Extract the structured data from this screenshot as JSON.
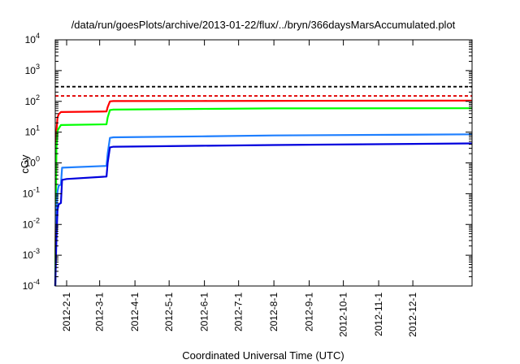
{
  "chart_data": {
    "type": "line",
    "title": "/data/run/goesPlots/archive/2013-01-22/flux/../bryn/366daysMarsAccumulated.plot",
    "xlabel": "Coordinated Universal Time (UTC)",
    "ylabel": "cGy",
    "yscale": "log",
    "ylim": [
      0.0001,
      10000
    ],
    "xlim": [
      "2012-01-22",
      "2013-01-22"
    ],
    "grid": false,
    "legend": "none",
    "x_ticks": [
      "2012-2-1",
      "2012-3-1",
      "2012-4-1",
      "2012-5-1",
      "2012-6-1",
      "2012-7-1",
      "2012-8-1",
      "2012-9-1",
      "2012-10-1",
      "2012-11-1",
      "2012-12-1"
    ],
    "x_tick_dates": [
      "2012-02-01",
      "2012-03-01",
      "2012-04-01",
      "2012-05-01",
      "2012-06-01",
      "2012-07-01",
      "2012-08-01",
      "2012-09-01",
      "2012-10-01",
      "2012-11-01",
      "2012-12-01"
    ],
    "y_ticks": [
      {
        "value": 0.0001,
        "base": "10",
        "exp": "-4"
      },
      {
        "value": 0.001,
        "base": "10",
        "exp": "-3"
      },
      {
        "value": 0.01,
        "base": "10",
        "exp": "-2"
      },
      {
        "value": 0.1,
        "base": "10",
        "exp": "-1"
      },
      {
        "value": 1,
        "base": "10",
        "exp": "0"
      },
      {
        "value": 10,
        "base": "10",
        "exp": "1"
      },
      {
        "value": 100,
        "base": "10",
        "exp": "2"
      },
      {
        "value": 1000,
        "base": "10",
        "exp": "3"
      },
      {
        "value": 10000,
        "base": "10",
        "exp": "4"
      }
    ],
    "reference_lines": [
      {
        "value": 300,
        "color": "#000000",
        "dash": true
      },
      {
        "value": 150,
        "color": "#e00000",
        "dash": true
      }
    ],
    "series": [
      {
        "color": "#ff0000",
        "points": [
          [
            "2012-01-22",
            0.0001
          ],
          [
            "2012-01-23",
            10
          ],
          [
            "2012-01-24",
            30
          ],
          [
            "2012-01-25",
            38
          ],
          [
            "2012-01-27",
            45
          ],
          [
            "2012-03-07",
            47
          ],
          [
            "2012-03-08",
            65
          ],
          [
            "2012-03-10",
            100
          ],
          [
            "2012-03-13",
            102
          ],
          [
            "2012-05-30",
            103
          ],
          [
            "2012-08-01",
            104
          ],
          [
            "2013-01-22",
            106
          ]
        ]
      },
      {
        "color": "#00ff00",
        "points": [
          [
            "2012-01-22",
            0.0001
          ],
          [
            "2012-01-23",
            3
          ],
          [
            "2012-01-24",
            11
          ],
          [
            "2012-01-25",
            13
          ],
          [
            "2012-01-27",
            17
          ],
          [
            "2012-03-07",
            18
          ],
          [
            "2012-03-08",
            30
          ],
          [
            "2012-03-10",
            52
          ],
          [
            "2012-03-13",
            54
          ],
          [
            "2012-05-30",
            57
          ],
          [
            "2012-08-01",
            59
          ],
          [
            "2013-01-22",
            60
          ]
        ]
      },
      {
        "color": "#1e7fff",
        "points": [
          [
            "2012-01-22",
            0.0001
          ],
          [
            "2012-01-23",
            0.03
          ],
          [
            "2012-01-24",
            0.12
          ],
          [
            "2012-01-25",
            0.18
          ],
          [
            "2012-01-27",
            0.2
          ],
          [
            "2012-01-28",
            0.7
          ],
          [
            "2012-03-07",
            0.8
          ],
          [
            "2012-03-08",
            2
          ],
          [
            "2012-03-10",
            6.5
          ],
          [
            "2012-03-13",
            6.8
          ],
          [
            "2012-05-30",
            7.3
          ],
          [
            "2012-08-01",
            7.8
          ],
          [
            "2013-01-22",
            8.5
          ]
        ]
      },
      {
        "color": "#0000dd",
        "points": [
          [
            "2012-01-22",
            0.0001
          ],
          [
            "2012-01-23",
            0.003
          ],
          [
            "2012-01-24",
            0.03
          ],
          [
            "2012-01-25",
            0.045
          ],
          [
            "2012-01-27",
            0.05
          ],
          [
            "2012-01-28",
            0.28
          ],
          [
            "2012-02-01",
            0.3
          ],
          [
            "2012-03-07",
            0.36
          ],
          [
            "2012-03-08",
            1
          ],
          [
            "2012-03-10",
            3.2
          ],
          [
            "2012-03-13",
            3.35
          ],
          [
            "2012-05-30",
            3.6
          ],
          [
            "2012-08-01",
            3.8
          ],
          [
            "2013-01-22",
            4.3
          ]
        ]
      }
    ]
  }
}
